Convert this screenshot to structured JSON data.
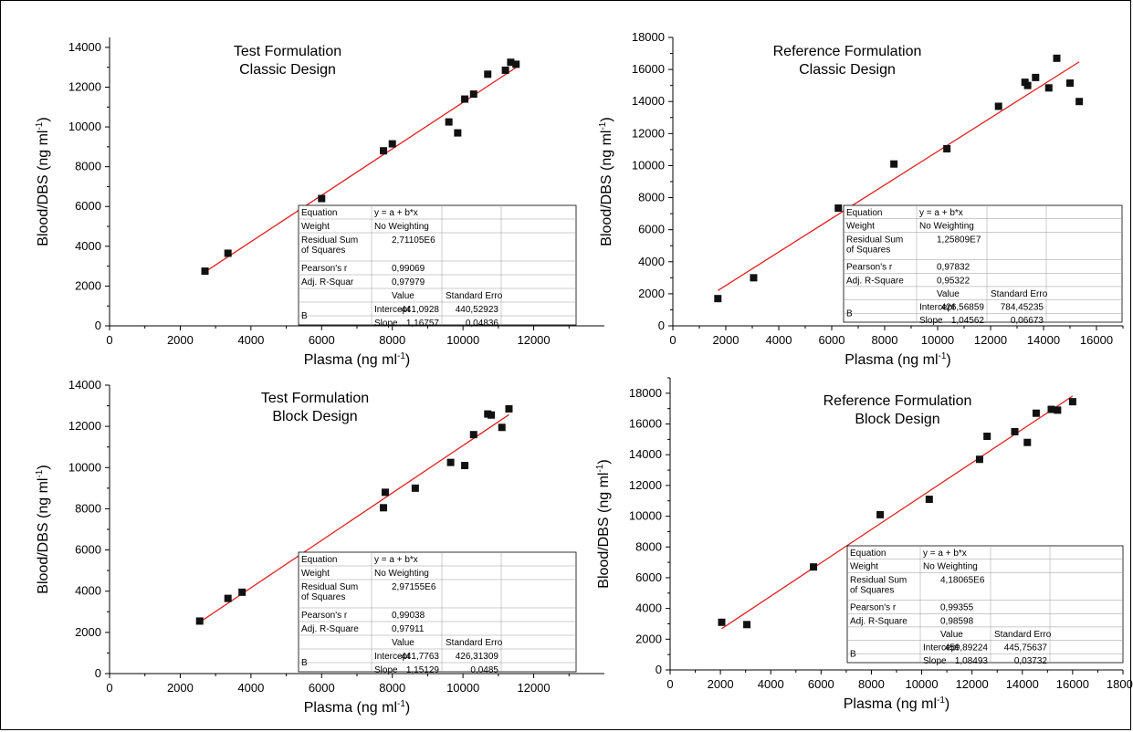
{
  "colors": {
    "fit_line": "#e02020",
    "points": "#111111",
    "axis": "#000000"
  },
  "chart_data": [
    {
      "type": "scatter",
      "title": [
        "Test Formulation",
        "Classic Design"
      ],
      "xlabel": "Plasma (ng ml-1)",
      "ylabel": "Blood/DBS (ng ml-1)",
      "xlim": [
        0,
        14000
      ],
      "ylim": [
        0,
        14500
      ],
      "xticks": [
        0,
        2000,
        4000,
        6000,
        8000,
        10000,
        12000
      ],
      "yticks": [
        0,
        2000,
        4000,
        6000,
        8000,
        10000,
        12000,
        14000
      ],
      "points": [
        [
          2700,
          2750
        ],
        [
          3350,
          3650
        ],
        [
          6000,
          6400
        ],
        [
          7750,
          8800
        ],
        [
          8000,
          9150
        ],
        [
          9600,
          10250
        ],
        [
          9850,
          9700
        ],
        [
          10050,
          11400
        ],
        [
          10300,
          11650
        ],
        [
          10700,
          12650
        ],
        [
          11200,
          12850
        ],
        [
          11350,
          13250
        ],
        [
          11500,
          13150
        ]
      ],
      "fit": {
        "intercept": -441.0928,
        "slope": 1.16757,
        "x_range": [
          2700,
          11500
        ]
      },
      "table": {
        "equation": "y = a + b*x",
        "weight": "No Weighting",
        "rss": "2,71105E6",
        "pearson": "0,99069",
        "adj_r2_label": "Adj. R-Squar",
        "adj_r2": "0,97979",
        "intercept_value": "-441,0928",
        "intercept_se": "440,52923",
        "slope_value": "1,16757",
        "slope_se": "0,04836"
      }
    },
    {
      "type": "scatter",
      "title": [
        "Reference Formulation",
        "Classic Design"
      ],
      "xlabel": "Plasma (ng ml-1)",
      "ylabel": "Blood/DBS (ng ml-1)",
      "xlim": [
        0,
        17000
      ],
      "ylim": [
        0,
        18000
      ],
      "xticks": [
        0,
        2000,
        4000,
        6000,
        8000,
        10000,
        12000,
        14000,
        16000
      ],
      "yticks": [
        0,
        2000,
        4000,
        6000,
        8000,
        10000,
        12000,
        14000,
        16000,
        18000
      ],
      "points": [
        [
          1700,
          1700
        ],
        [
          3050,
          3000
        ],
        [
          6250,
          7350
        ],
        [
          8350,
          10100
        ],
        [
          10350,
          11050
        ],
        [
          12300,
          13700
        ],
        [
          13300,
          15200
        ],
        [
          13400,
          15000
        ],
        [
          13700,
          15500
        ],
        [
          14200,
          14850
        ],
        [
          14500,
          16700
        ],
        [
          15000,
          15150
        ],
        [
          15350,
          14000
        ]
      ],
      "fit": {
        "intercept": 426.56859,
        "slope": 1.04562,
        "x_range": [
          1700,
          15350
        ]
      },
      "table": {
        "equation": "y = a + b*x",
        "weight": "No Weighting",
        "rss": "1,25809E7",
        "pearson": "0,97832",
        "adj_r2_label": "Adj. R-Square",
        "adj_r2": "0,95322",
        "intercept_value": "426,56859",
        "intercept_se": "784,45235",
        "slope_value": "1,04562",
        "slope_se": "0,06673"
      }
    },
    {
      "type": "scatter",
      "title": [
        "Test Formulation",
        "Block Design"
      ],
      "xlabel": "Plasma (ng ml-1)",
      "ylabel": "Blood/DBS (ng ml-1)",
      "xlim": [
        0,
        14000
      ],
      "ylim": [
        0,
        14000
      ],
      "xticks": [
        0,
        2000,
        4000,
        6000,
        8000,
        10000,
        12000
      ],
      "yticks": [
        0,
        2000,
        4000,
        6000,
        8000,
        10000,
        12000,
        14000
      ],
      "points": [
        [
          2550,
          2550
        ],
        [
          3350,
          3650
        ],
        [
          3750,
          3950
        ],
        [
          7750,
          8050
        ],
        [
          7800,
          8800
        ],
        [
          8650,
          9000
        ],
        [
          9650,
          10250
        ],
        [
          10050,
          10100
        ],
        [
          10300,
          11600
        ],
        [
          10700,
          12600
        ],
        [
          10800,
          12550
        ],
        [
          11100,
          11950
        ],
        [
          11300,
          12850
        ]
      ],
      "fit": {
        "intercept": -441.7763,
        "slope": 1.15129,
        "x_range": [
          2550,
          11300
        ]
      },
      "table": {
        "equation": "y = a + b*x",
        "weight": "No Weighting",
        "rss": "2,97155E6",
        "pearson": "0,99038",
        "adj_r2_label": "Adj. R-Square",
        "adj_r2": "0,97911",
        "intercept_value": "-441,7763",
        "intercept_se": "426,31309",
        "slope_value": "1,15129",
        "slope_se": "0,0485"
      }
    },
    {
      "type": "scatter",
      "title": [
        "Reference Formulation",
        "Block Design"
      ],
      "xlabel": "Plasma (ng ml-1)",
      "ylabel": "Blood/DBS (ng ml-1)",
      "xlim": [
        0,
        18000
      ],
      "ylim": [
        0,
        19000
      ],
      "xticks": [
        0,
        2000,
        4000,
        6000,
        8000,
        10000,
        12000,
        14000,
        16000,
        18000
      ],
      "yticks": [
        0,
        2000,
        4000,
        6000,
        8000,
        10000,
        12000,
        14000,
        16000,
        18000
      ],
      "points": [
        [
          2050,
          3100
        ],
        [
          3050,
          2950
        ],
        [
          5700,
          6700
        ],
        [
          8350,
          10100
        ],
        [
          10300,
          11100
        ],
        [
          12300,
          13700
        ],
        [
          12600,
          15200
        ],
        [
          13700,
          15500
        ],
        [
          14200,
          14800
        ],
        [
          14550,
          16700
        ],
        [
          15150,
          16950
        ],
        [
          15400,
          16900
        ],
        [
          16000,
          17450
        ]
      ],
      "fit": {
        "intercept": 459.89224,
        "slope": 1.08493,
        "x_range": [
          2050,
          16000
        ]
      },
      "table": {
        "equation": "y = a + b*x",
        "weight": "No Weighting",
        "rss": "4,18065E6",
        "pearson": "0,99355",
        "adj_r2_label": "Adj. R-Square",
        "adj_r2": "0,98598",
        "intercept_value": "459,89224",
        "intercept_se": "445,75637",
        "slope_value": "1,08493",
        "slope_se": "0,03732"
      }
    }
  ],
  "table_labels": {
    "equation": "Equation",
    "weight": "Weight",
    "rss_line1": "Residual Sum",
    "rss_line2": "of Squares",
    "pearson": "Pearson's r",
    "value": "Value",
    "standard_error": "Standard Erro",
    "param": "B",
    "intercept": "Intercept",
    "slope": "Slope"
  }
}
